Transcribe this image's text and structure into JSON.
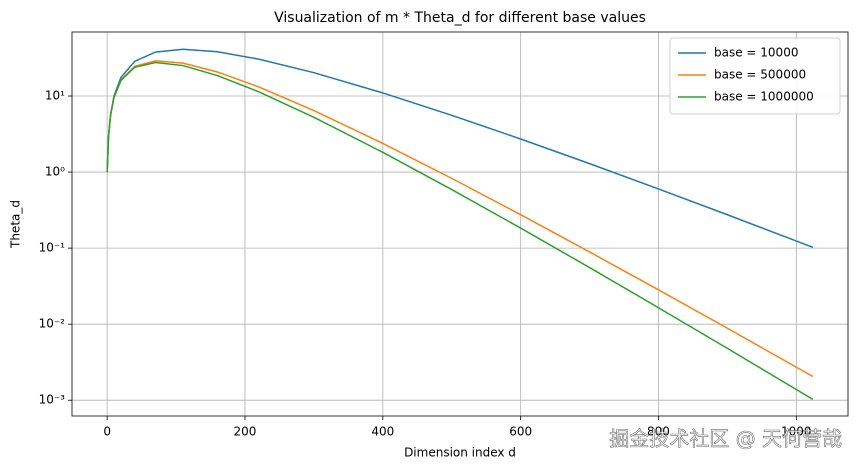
{
  "chart_data": {
    "type": "line",
    "title": "Visualization of m * Theta_d for different base values",
    "x_label": "Dimension index d",
    "y_label": "Theta_d",
    "log_y": true,
    "grid": true,
    "legend": "upper right",
    "x": [
      0,
      2,
      5,
      10,
      20,
      40,
      70,
      110,
      160,
      220,
      300,
      400,
      500,
      600,
      700,
      800,
      900,
      1024
    ],
    "series": [
      {
        "name": "base = 10000",
        "color": "#1f77b4",
        "values": [
          1,
          2.947,
          5.736,
          10.05,
          17.54,
          28.61,
          37.83,
          41.27,
          38.18,
          30.55,
          20.27,
          10.98,
          5.581,
          2.723,
          1.292,
          0.6004,
          0.2747,
          0.1025
        ]
      },
      {
        "name": "base = 500000",
        "color": "#ff7f0e",
        "values": [
          1,
          2.924,
          5.628,
          9.677,
          16.25,
          24.56,
          28.95,
          27.11,
          20.72,
          13.18,
          6.441,
          2.383,
          0.8265,
          0.2753,
          0.0891,
          0.02828,
          0.00883,
          0.00205
        ]
      },
      {
        "name": "base = 1000000",
        "color": "#2ca02c",
        "values": [
          1,
          2.92,
          5.609,
          9.612,
          16.03,
          23.9,
          27.61,
          25.16,
          18.59,
          11.36,
          5.256,
          1.817,
          0.5892,
          0.1834,
          0.0555,
          0.01645,
          0.0048,
          0.001025
        ]
      }
    ],
    "xlim": [
      -51,
      1075
    ],
    "ylim": [
      0.00062,
      69.5
    ],
    "xticks": [
      0,
      200,
      400,
      600,
      800,
      1000
    ],
    "yticks": [
      {
        "value": 0.001,
        "label": "10⁻³"
      },
      {
        "value": 0.01,
        "label": "10⁻²"
      },
      {
        "value": 0.1,
        "label": "10⁻¹"
      },
      {
        "value": 1,
        "label": "10⁰"
      },
      {
        "value": 10,
        "label": "10¹"
      }
    ],
    "watermark": "掘金技术社区 @ 天何营哉"
  }
}
